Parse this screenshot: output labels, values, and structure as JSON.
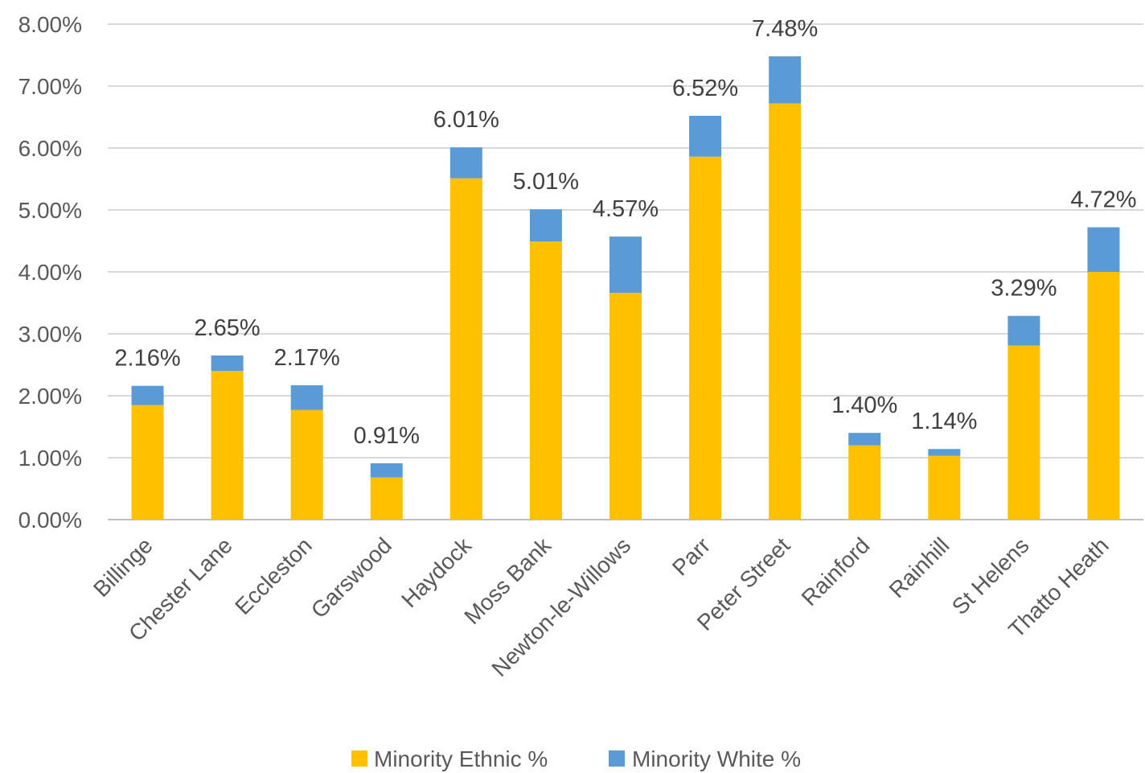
{
  "chart_data": {
    "type": "bar",
    "stacked": true,
    "categories": [
      "Billinge",
      "Chester Lane",
      "Eccleston",
      "Garswood",
      "Haydock",
      "Moss Bank",
      "Newton-le-Willows",
      "Parr",
      "Peter Street",
      "Rainford",
      "Rainhill",
      "St Helens",
      "Thatto Heath"
    ],
    "series": [
      {
        "name": "Minority Ethnic %",
        "color": "#FFC000",
        "values": [
          1.85,
          2.4,
          1.77,
          0.68,
          5.51,
          4.49,
          3.66,
          5.86,
          6.72,
          1.2,
          1.03,
          2.81,
          4.0
        ]
      },
      {
        "name": "Minority White %",
        "color": "#5B9BD5",
        "values": [
          0.31,
          0.25,
          0.4,
          0.23,
          0.5,
          0.52,
          0.91,
          0.66,
          0.76,
          0.2,
          0.11,
          0.48,
          0.72
        ]
      }
    ],
    "totals": [
      2.16,
      2.65,
      2.17,
      0.91,
      6.01,
      5.01,
      4.57,
      6.52,
      7.48,
      1.4,
      1.14,
      3.29,
      4.72
    ],
    "total_labels": [
      "2.16%",
      "2.65%",
      "2.17%",
      "0.91%",
      "6.01%",
      "5.01%",
      "4.57%",
      "6.52%",
      "7.48%",
      "1.40%",
      "1.14%",
      "3.29%",
      "4.72%"
    ],
    "ylim": [
      0,
      8
    ],
    "yticks": [
      0,
      1,
      2,
      3,
      4,
      5,
      6,
      7,
      8
    ],
    "ytick_labels": [
      "0.00%",
      "1.00%",
      "2.00%",
      "3.00%",
      "4.00%",
      "5.00%",
      "6.00%",
      "7.00%",
      "8.00%"
    ],
    "grid": true,
    "legend_position": "bottom",
    "title": "",
    "xlabel": "",
    "ylabel": ""
  }
}
